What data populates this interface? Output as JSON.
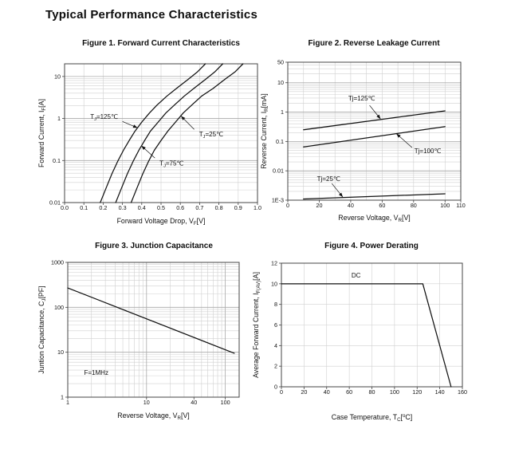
{
  "page": {
    "title": "Typical Performance Characteristics"
  },
  "colors": {
    "curve": "#111111",
    "grid_minor": "#d0d0d0",
    "grid_major": "#a9a9a9",
    "frame": "#444444",
    "text": "#111111"
  },
  "chart_data": [
    {
      "id": "figure-1",
      "type": "line",
      "title": "Figure 1. Forward Current Characteristics",
      "x_axis": {
        "scale": "linear",
        "min": 0,
        "max": 1,
        "grid_step": 0.1,
        "label": [
          {
            "t": "Forward Voltage Drop, V"
          },
          {
            "t": "F",
            "pos": "sub"
          },
          {
            "t": "[V]"
          }
        ],
        "ticks": [
          {
            "v": 0,
            "label": "0.0"
          },
          {
            "v": 0.1,
            "label": "0.1"
          },
          {
            "v": 0.2,
            "label": "0.2"
          },
          {
            "v": 0.3,
            "label": "0.3"
          },
          {
            "v": 0.4,
            "label": "0.4"
          },
          {
            "v": 0.5,
            "label": "0.5"
          },
          {
            "v": 0.6,
            "label": "0.6"
          },
          {
            "v": 0.7,
            "label": "0.7"
          },
          {
            "v": 0.8,
            "label": "0.8"
          },
          {
            "v": 0.9,
            "label": "0.9"
          },
          {
            "v": 1,
            "label": "1.0"
          }
        ]
      },
      "y_axis": {
        "scale": "log",
        "min": 0.01,
        "max": 20,
        "label": [
          {
            "t": "Forward Current, I"
          },
          {
            "t": "F",
            "pos": "sub"
          },
          {
            "t": "[A]"
          }
        ],
        "ticks": [
          {
            "v": 10,
            "label": "10"
          },
          {
            "v": 1,
            "label": "1"
          },
          {
            "v": 0.1,
            "label": "0.1"
          },
          {
            "v": 0.01,
            "label": "0.01"
          }
        ]
      },
      "series": [
        {
          "name": "Tj=125C",
          "points": [
            [
              0.185,
              0.01
            ],
            [
              0.215,
              0.022
            ],
            [
              0.245,
              0.048
            ],
            [
              0.275,
              0.095
            ],
            [
              0.305,
              0.175
            ],
            [
              0.335,
              0.3
            ],
            [
              0.365,
              0.5
            ],
            [
              0.4,
              0.82
            ],
            [
              0.44,
              1.35
            ],
            [
              0.48,
              2.1
            ],
            [
              0.53,
              3.4
            ],
            [
              0.58,
              5.2
            ],
            [
              0.64,
              8.5
            ],
            [
              0.69,
              13
            ],
            [
              0.73,
              20
            ]
          ]
        },
        {
          "name": "Tj=75C",
          "points": [
            [
              0.265,
              0.01
            ],
            [
              0.295,
              0.022
            ],
            [
              0.325,
              0.048
            ],
            [
              0.355,
              0.095
            ],
            [
              0.385,
              0.175
            ],
            [
              0.415,
              0.3
            ],
            [
              0.445,
              0.5
            ],
            [
              0.485,
              0.82
            ],
            [
              0.525,
              1.35
            ],
            [
              0.57,
              2.1
            ],
            [
              0.62,
              3.4
            ],
            [
              0.67,
              5.2
            ],
            [
              0.73,
              8.5
            ],
            [
              0.78,
              13
            ],
            [
              0.82,
              20
            ]
          ]
        },
        {
          "name": "Tj=25C",
          "points": [
            [
              0.345,
              0.01
            ],
            [
              0.375,
              0.022
            ],
            [
              0.405,
              0.048
            ],
            [
              0.435,
              0.095
            ],
            [
              0.465,
              0.175
            ],
            [
              0.5,
              0.3
            ],
            [
              0.535,
              0.5
            ],
            [
              0.575,
              0.82
            ],
            [
              0.615,
              1.35
            ],
            [
              0.66,
              2.1
            ],
            [
              0.71,
              3.4
            ],
            [
              0.77,
              5.2
            ],
            [
              0.83,
              8.5
            ],
            [
              0.885,
              13
            ],
            [
              0.925,
              20
            ]
          ]
        }
      ],
      "annotations": [
        {
          "label": [
            {
              "t": "T"
            },
            {
              "t": "J",
              "pos": "sub"
            },
            {
              "t": "=125℃"
            }
          ],
          "at": [
            0.205,
            1.1
          ],
          "arrow_from": [
            0.3,
            0.85
          ],
          "arrow_to": [
            0.378,
            0.6
          ]
        },
        {
          "label": [
            {
              "t": "T"
            },
            {
              "t": "J",
              "pos": "sub"
            },
            {
              "t": "=75℃"
            }
          ],
          "at": [
            0.555,
            0.085
          ],
          "arrow_from": [
            0.468,
            0.115
          ],
          "arrow_to": [
            0.398,
            0.225
          ]
        },
        {
          "label": [
            {
              "t": "T"
            },
            {
              "t": "J",
              "pos": "sub"
            },
            {
              "t": "=25℃"
            }
          ],
          "at": [
            0.76,
            0.42
          ],
          "arrow_from": [
            0.672,
            0.55
          ],
          "arrow_to": [
            0.603,
            1.15
          ]
        }
      ]
    },
    {
      "id": "figure-2",
      "type": "line",
      "title": "Figure 2. Reverse Leakage Current",
      "x_axis": {
        "scale": "linear",
        "min": 0,
        "max": 110,
        "grid_step": 10,
        "label": [
          {
            "t": "Reverse Voltage, V"
          },
          {
            "t": "R",
            "pos": "sub"
          },
          {
            "t": "[V]"
          }
        ],
        "ticks": [
          {
            "v": 0,
            "label": "0"
          },
          {
            "v": 20,
            "label": "20"
          },
          {
            "v": 40,
            "label": "40"
          },
          {
            "v": 60,
            "label": "60"
          },
          {
            "v": 80,
            "label": "80"
          },
          {
            "v": 100,
            "label": "100"
          },
          {
            "v": 110,
            "label": "110"
          }
        ]
      },
      "y_axis": {
        "scale": "log",
        "min": 0.001,
        "max": 50,
        "label": [
          {
            "t": "Reverse Current, I"
          },
          {
            "t": "R",
            "pos": "sub"
          },
          {
            "t": "[mA]"
          }
        ],
        "ticks": [
          {
            "v": 50,
            "label": "50"
          },
          {
            "v": 10,
            "label": "10"
          },
          {
            "v": 1,
            "label": "1"
          },
          {
            "v": 0.1,
            "label": "0.1"
          },
          {
            "v": 0.01,
            "label": "0.01"
          },
          {
            "v": 0.001,
            "label": "1E-3"
          }
        ]
      },
      "series": [
        {
          "name": "Tj=125C",
          "points": [
            [
              10,
              0.25
            ],
            [
              100,
              1.1
            ]
          ]
        },
        {
          "name": "Tj=100C",
          "points": [
            [
              10,
              0.065
            ],
            [
              100,
              0.32
            ]
          ]
        },
        {
          "name": "Tj=25C",
          "points": [
            [
              10,
              0.0011
            ],
            [
              100,
              0.00165
            ]
          ]
        }
      ],
      "annotations": [
        {
          "label": "Tj=125℃",
          "at": [
            47,
            2.9
          ],
          "arrow_from": [
            52,
            1.7
          ],
          "arrow_to": [
            59,
            0.58
          ]
        },
        {
          "label": "Tj=100℃",
          "at": [
            89,
            0.047
          ],
          "arrow_from": [
            79,
            0.062
          ],
          "arrow_to": [
            69,
            0.185
          ]
        },
        {
          "label": "Tj=25℃",
          "at": [
            26,
            0.0053
          ],
          "arrow_from": [
            28,
            0.0037
          ],
          "arrow_to": [
            35,
            0.00127
          ]
        }
      ]
    },
    {
      "id": "figure-3",
      "type": "line",
      "title": "Figure 3. Junction Capacitance",
      "x_axis": {
        "scale": "log",
        "min": 1,
        "max": 150,
        "label": [
          {
            "t": "Reverse Voltage, V"
          },
          {
            "t": "R",
            "pos": "sub"
          },
          {
            "t": "[V]"
          }
        ],
        "ticks": [
          {
            "v": 1,
            "label": "1"
          },
          {
            "v": 10,
            "label": "10"
          },
          {
            "v": 40,
            "label": "40"
          },
          {
            "v": 100,
            "label": "100"
          }
        ]
      },
      "y_axis": {
        "scale": "log",
        "min": 1,
        "max": 1000,
        "label": [
          {
            "t": "Juntion Capacitance, C"
          },
          {
            "t": "J",
            "pos": "sub"
          },
          {
            "t": "[PF]"
          }
        ],
        "ticks": [
          {
            "v": 1000,
            "label": "1000"
          },
          {
            "v": 100,
            "label": "100"
          },
          {
            "v": 10,
            "label": "10"
          },
          {
            "v": 1,
            "label": "1"
          }
        ]
      },
      "series": [
        {
          "name": "Cj",
          "points": [
            [
              1,
              270
            ],
            [
              130,
              9.5
            ]
          ]
        }
      ],
      "annotations": [
        {
          "label": "F=1MHz",
          "at": [
            2.3,
            3.5
          ]
        }
      ]
    },
    {
      "id": "figure-4",
      "type": "line",
      "title": "Figure 4. Power Derating",
      "x_axis": {
        "scale": "linear",
        "min": 0,
        "max": 160,
        "grid_step": 20,
        "label": [
          {
            "t": "Case Temperature, T"
          },
          {
            "t": "C",
            "pos": "sub"
          },
          {
            "t": "["
          },
          {
            "t": "o",
            "pos": "sup"
          },
          {
            "t": "C]"
          }
        ],
        "ticks": [
          {
            "v": 0,
            "label": "0"
          },
          {
            "v": 20,
            "label": "20"
          },
          {
            "v": 40,
            "label": "40"
          },
          {
            "v": 60,
            "label": "60"
          },
          {
            "v": 80,
            "label": "80"
          },
          {
            "v": 100,
            "label": "100"
          },
          {
            "v": 120,
            "label": "120"
          },
          {
            "v": 140,
            "label": "140"
          },
          {
            "v": 160,
            "label": "160"
          }
        ]
      },
      "y_axis": {
        "scale": "linear",
        "min": 0,
        "max": 12,
        "grid_step": 2,
        "label": [
          {
            "t": "Average Forward Current, I"
          },
          {
            "t": "F(AV)",
            "pos": "sub"
          },
          {
            "t": "[A]"
          }
        ],
        "ticks": [
          {
            "v": 12,
            "label": "12"
          },
          {
            "v": 10,
            "label": "10"
          },
          {
            "v": 8,
            "label": "8"
          },
          {
            "v": 6,
            "label": "6"
          },
          {
            "v": 4,
            "label": "4"
          },
          {
            "v": 2,
            "label": "2"
          },
          {
            "v": 0,
            "label": "0"
          }
        ]
      },
      "series": [
        {
          "name": "DC",
          "points": [
            [
              0,
              10
            ],
            [
              125,
              10
            ],
            [
              150,
              0
            ]
          ]
        }
      ],
      "annotations": [
        {
          "label": "DC",
          "at": [
            66,
            10.8
          ]
        }
      ]
    }
  ]
}
